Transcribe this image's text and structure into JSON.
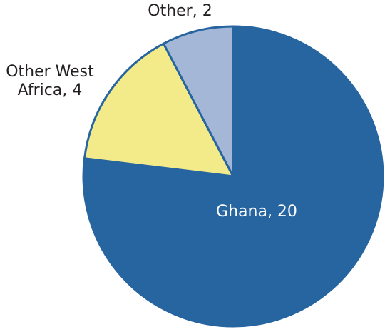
{
  "chart_data": {
    "type": "pie",
    "values": [
      20,
      4,
      2
    ],
    "value_labels": [
      "Ghana, 20",
      "Other West Africa, 4",
      "Other, 2"
    ],
    "colors": [
      "#2665a0",
      "#f3ea8a",
      "#a4b7d7"
    ],
    "start_angle": 90,
    "direction": "clockwise"
  }
}
